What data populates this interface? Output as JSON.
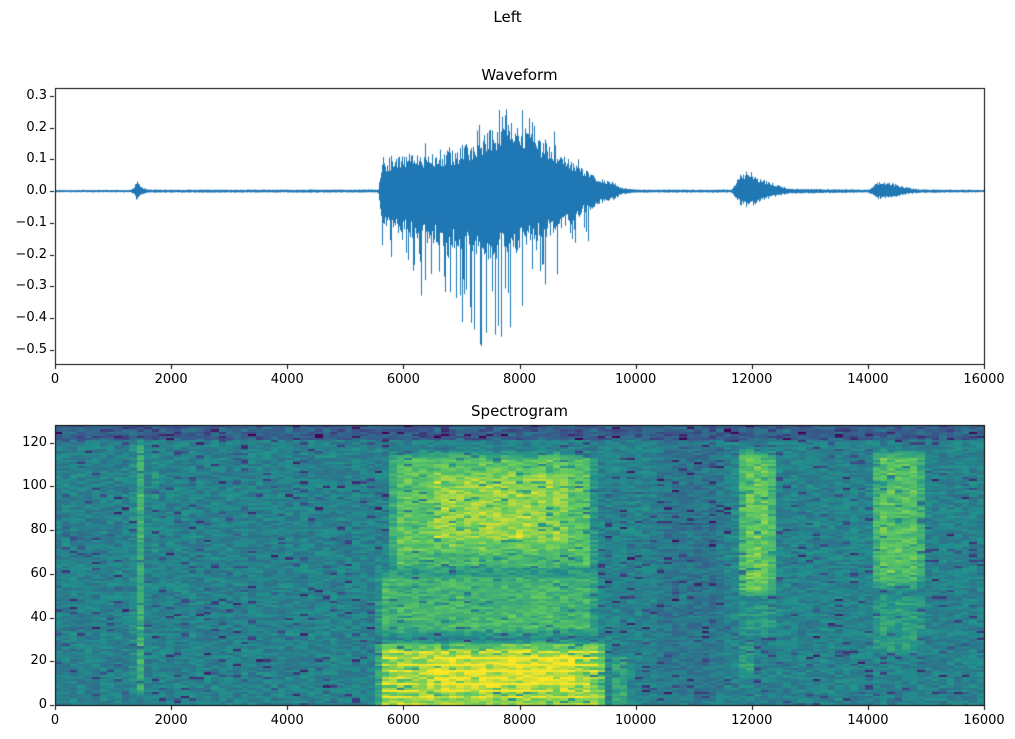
{
  "figure": {
    "suptitle": "Left",
    "background": "#ffffff",
    "text_color": "#000000"
  },
  "chart_data": [
    {
      "type": "line",
      "title": "Waveform",
      "xlabel": "",
      "ylabel": "",
      "line_color": "#1f77b4",
      "xlim": [
        0,
        16000
      ],
      "ylim": [
        -0.545,
        0.325
      ],
      "grid": false,
      "xticks": [
        0,
        2000,
        4000,
        6000,
        8000,
        10000,
        12000,
        14000,
        16000
      ],
      "xtick_labels": [
        "0",
        "2000",
        "4000",
        "6000",
        "8000",
        "10000",
        "12000",
        "14000",
        "16000"
      ],
      "yticks": [
        0.3,
        0.2,
        0.1,
        0.0,
        -0.1,
        -0.2,
        -0.3,
        -0.4,
        -0.5
      ],
      "ytick_labels": [
        "0.3",
        "0.2",
        "0.1",
        "0.0",
        "−0.1",
        "−0.2",
        "−0.3",
        "−0.4",
        "−0.5"
      ],
      "description": "Audio waveform, mostly silent; small transient near x=1400 (±0.04), main speech burst from ~5600 to ~9900 with dense body ±0.2, sparse negative spikes to -0.52 and positive peaks to 0.28 near x=7500, smaller bursts at ~11800-12500 (±0.065) and ~14100-14700 (±0.03)",
      "envelope": [
        [
          0,
          0.004,
          -0.004
        ],
        [
          1300,
          0.004,
          -0.004
        ],
        [
          1360,
          0.015,
          -0.012
        ],
        [
          1410,
          0.042,
          -0.038
        ],
        [
          1470,
          0.014,
          -0.012
        ],
        [
          1600,
          0.005,
          -0.005
        ],
        [
          5560,
          0.005,
          -0.005
        ],
        [
          5640,
          0.1,
          -0.12
        ],
        [
          5900,
          0.11,
          -0.14
        ],
        [
          6300,
          0.12,
          -0.16
        ],
        [
          6800,
          0.13,
          -0.18
        ],
        [
          7200,
          0.16,
          -0.2
        ],
        [
          7500,
          0.2,
          -0.22
        ],
        [
          7800,
          0.22,
          -0.21
        ],
        [
          8100,
          0.2,
          -0.18
        ],
        [
          8400,
          0.16,
          -0.15
        ],
        [
          8800,
          0.11,
          -0.12
        ],
        [
          9100,
          0.07,
          -0.07
        ],
        [
          9300,
          0.05,
          -0.05
        ],
        [
          9450,
          0.035,
          -0.035
        ],
        [
          9600,
          0.03,
          -0.03
        ],
        [
          9750,
          0.012,
          -0.012
        ],
        [
          9950,
          0.006,
          -0.006
        ],
        [
          10200,
          0.005,
          -0.005
        ],
        [
          11650,
          0.005,
          -0.005
        ],
        [
          11800,
          0.055,
          -0.045
        ],
        [
          11950,
          0.065,
          -0.055
        ],
        [
          12150,
          0.04,
          -0.032
        ],
        [
          12400,
          0.022,
          -0.018
        ],
        [
          12650,
          0.008,
          -0.008
        ],
        [
          14000,
          0.005,
          -0.005
        ],
        [
          14180,
          0.03,
          -0.026
        ],
        [
          14420,
          0.026,
          -0.022
        ],
        [
          14620,
          0.014,
          -0.012
        ],
        [
          14850,
          0.006,
          -0.006
        ],
        [
          16000,
          0.004,
          -0.004
        ]
      ],
      "spikes": [
        {
          "x0": 5640,
          "x1": 6300,
          "neg": -0.26,
          "pos": 0.13,
          "density": 0.18
        },
        {
          "x0": 6300,
          "x1": 7000,
          "neg": -0.34,
          "pos": 0.16,
          "density": 0.2
        },
        {
          "x0": 7000,
          "x1": 7300,
          "neg": -0.45,
          "pos": 0.2,
          "density": 0.24
        },
        {
          "x0": 7300,
          "x1": 7700,
          "neg": -0.53,
          "pos": 0.28,
          "density": 0.3
        },
        {
          "x0": 7700,
          "x1": 8200,
          "neg": -0.44,
          "pos": 0.26,
          "density": 0.26
        },
        {
          "x0": 8200,
          "x1": 8700,
          "neg": -0.32,
          "pos": 0.22,
          "density": 0.22
        },
        {
          "x0": 8700,
          "x1": 9200,
          "neg": -0.17,
          "pos": 0.12,
          "density": 0.16
        }
      ]
    },
    {
      "type": "heatmap",
      "title": "Spectrogram",
      "xlabel": "",
      "ylabel": "",
      "colormap": "viridis",
      "xlim": [
        0,
        16000
      ],
      "ylim": [
        0,
        128
      ],
      "xticks": [
        0,
        2000,
        4000,
        6000,
        8000,
        10000,
        12000,
        14000,
        16000
      ],
      "xtick_labels": [
        "0",
        "2000",
        "4000",
        "6000",
        "8000",
        "10000",
        "12000",
        "14000",
        "16000"
      ],
      "yticks": [
        0,
        20,
        40,
        60,
        80,
        100,
        120
      ],
      "ytick_labels": [
        "0",
        "20",
        "40",
        "60",
        "80",
        "100",
        "120"
      ],
      "grid_size": [
        125,
        129
      ],
      "base_level": 0.44,
      "description": "Spectrogram of the same signal: teal-green noise floor, bright vertical stripe at t≈1400, strong yellow low-frequency energy (bins 0-30) and bright mid/high energy (bins 60-115) during main burst t≈5500-9600, bright patches at t≈11800-12500 and t≈14100-15000 in bins 50-118, darker purple speckles near top bins",
      "viridis_stops": [
        [
          68,
          1,
          84
        ],
        [
          59,
          82,
          139
        ],
        [
          33,
          145,
          140
        ],
        [
          94,
          201,
          98
        ],
        [
          253,
          231,
          37
        ]
      ],
      "bursts": [
        {
          "t": [
            1270,
            1530
          ],
          "f": [
            2,
            124
          ],
          "add": 0.3
        },
        {
          "t": [
            1540,
            1760
          ],
          "f": [
            68,
            116
          ],
          "add": 0.12
        },
        {
          "t": [
            5480,
            9550
          ],
          "f": [
            -4,
            30
          ],
          "add": 0.42,
          "stripes": true
        },
        {
          "t": [
            9550,
            9950
          ],
          "f": [
            -4,
            25
          ],
          "add": 0.2
        },
        {
          "t": [
            5480,
            9400
          ],
          "f": [
            30,
            62
          ],
          "add": 0.22
        },
        {
          "t": [
            5700,
            9350
          ],
          "f": [
            60,
            117
          ],
          "add": 0.28
        },
        {
          "t": [
            6400,
            8900
          ],
          "f": [
            72,
            108
          ],
          "add": 0.12
        },
        {
          "t": [
            6300,
            9100
          ],
          "f": [
            4,
            26
          ],
          "add": 0.12
        },
        {
          "t": [
            5600,
            9300
          ],
          "f": [
            64,
            70
          ],
          "add": -0.12
        },
        {
          "t": [
            10300,
            11600
          ],
          "f": [
            0,
            126
          ],
          "add": -0.05
        },
        {
          "t": [
            11730,
            12520
          ],
          "f": [
            48,
            118
          ],
          "add": 0.3
        },
        {
          "t": [
            11800,
            12100
          ],
          "f": [
            10,
            30
          ],
          "add": 0.26
        },
        {
          "t": [
            11730,
            12520
          ],
          "f": [
            30,
            48
          ],
          "add": 0.1
        },
        {
          "t": [
            14060,
            15080
          ],
          "f": [
            52,
            118
          ],
          "add": 0.27
        },
        {
          "t": [
            14060,
            15080
          ],
          "f": [
            22,
            52
          ],
          "add": 0.12
        }
      ]
    }
  ]
}
